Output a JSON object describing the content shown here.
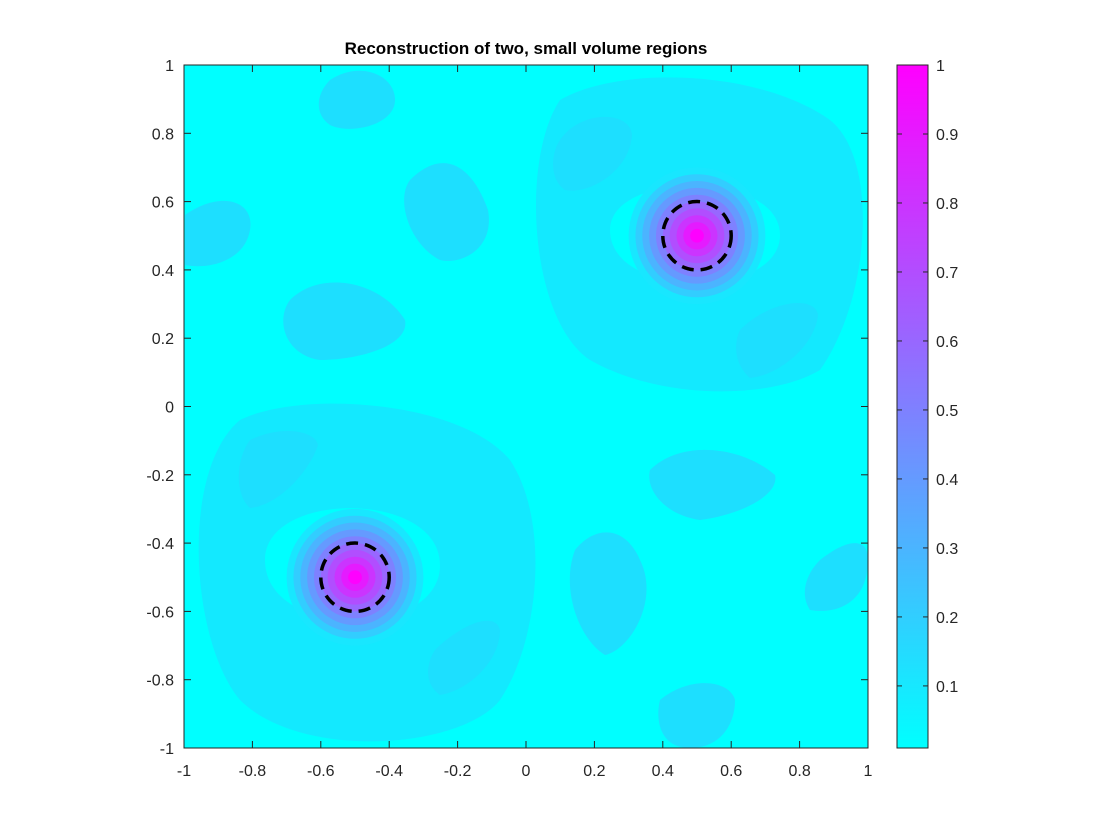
{
  "chart_data": {
    "type": "heatmap",
    "title": "Reconstruction of two, small volume regions",
    "xlabel": "",
    "ylabel": "",
    "xlim": [
      -1,
      1
    ],
    "ylim": [
      -1,
      1
    ],
    "x_ticks": [
      "-1",
      "-0.8",
      "-0.6",
      "-0.4",
      "-0.2",
      "0",
      "0.2",
      "0.4",
      "0.6",
      "0.8",
      "1"
    ],
    "y_ticks": [
      "-1",
      "-0.8",
      "-0.6",
      "-0.4",
      "-0.2",
      "0",
      "0.2",
      "0.4",
      "0.6",
      "0.8",
      "1"
    ],
    "colorbar": {
      "range": [
        0.01,
        1
      ],
      "ticks": [
        "0.1",
        "0.2",
        "0.3",
        "0.4",
        "0.5",
        "0.6",
        "0.7",
        "0.8",
        "0.9",
        "1"
      ],
      "colormap": "cool",
      "color_low": "#00ffff",
      "color_high": "#ff00ff"
    },
    "peaks": [
      {
        "x": 0.5,
        "y": 0.5,
        "value": 1.0
      },
      {
        "x": -0.5,
        "y": -0.5,
        "value": 1.0
      }
    ],
    "true_regions": [
      {
        "cx": 0.5,
        "cy": 0.5,
        "r": 0.1,
        "style": "dashed",
        "color": "#000000"
      },
      {
        "cx": -0.5,
        "cy": -0.5,
        "r": 0.1,
        "style": "dashed",
        "color": "#000000"
      }
    ],
    "grid": false
  }
}
